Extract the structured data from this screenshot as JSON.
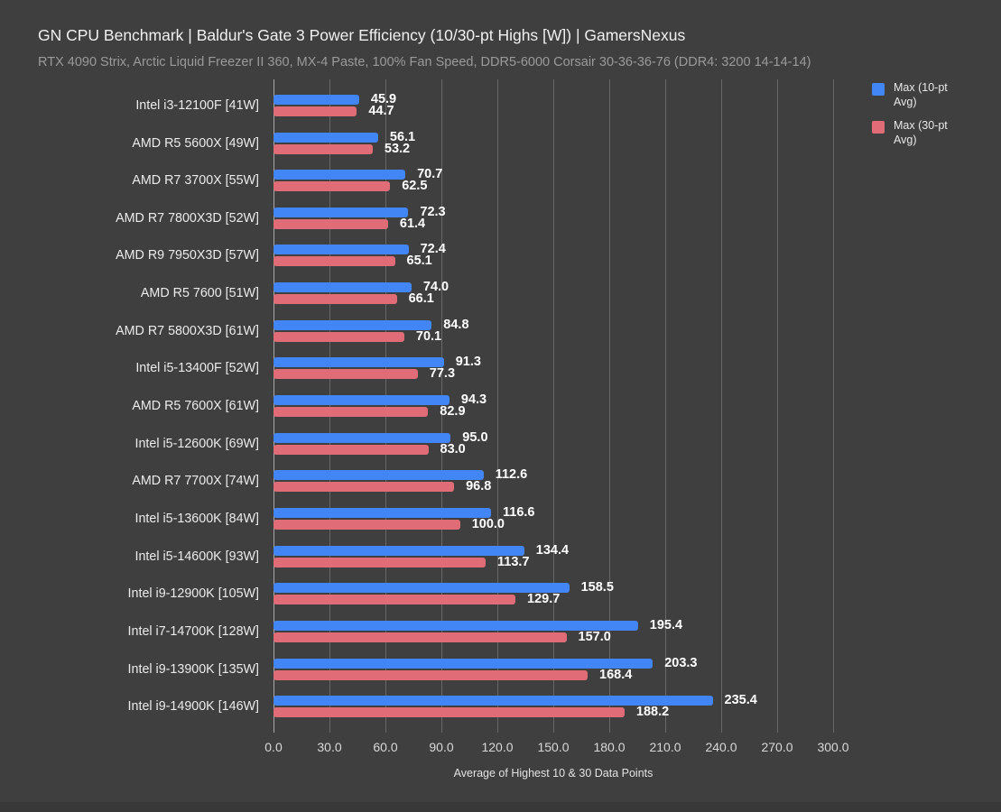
{
  "header": {
    "title": "GN CPU Benchmark | Baldur's Gate 3 Power Efficiency (10/30-pt Highs [W]) | GamersNexus",
    "subtitle": "RTX 4090 Strix, Arctic Liquid Freezer II 360, MX-4 Paste, 100% Fan Speed, DDR5-6000 Corsair 30-36-36-76 (DDR4: 3200 14-14-14)"
  },
  "chart_data": {
    "type": "bar",
    "orientation": "horizontal",
    "title": "GN CPU Benchmark | Baldur's Gate 3 Power Efficiency (10/30-pt Highs [W]) | GamersNexus",
    "subtitle": "RTX 4090 Strix, Arctic Liquid Freezer II 360, MX-4 Paste, 100% Fan Speed, DDR5-6000 Corsair 30-36-36-76 (DDR4: 3200 14-14-14)",
    "xlabel": "Average of Highest 10 & 30 Data Points",
    "xlim": [
      0,
      300
    ],
    "xtick_step": 30,
    "xtick_labels": [
      "0.0",
      "30.0",
      "60.0",
      "90.0",
      "120.0",
      "150.0",
      "180.0",
      "210.0",
      "240.0",
      "270.0",
      "300.0"
    ],
    "grid": true,
    "legend_position": "top-right",
    "value_label_decimals": 1,
    "categories": [
      "Intel i3-12100F [41W]",
      "AMD R5 5600X [49W]",
      "AMD R7 3700X [55W]",
      "AMD R7 7800X3D [52W]",
      "AMD R9 7950X3D [57W]",
      "AMD R5 7600 [51W]",
      "AMD R7 5800X3D [61W]",
      "Intel i5-13400F [52W]",
      "AMD R5 7600X [61W]",
      "Intel i5-12600K [69W]",
      "AMD R7 7700X [74W]",
      "Intel i5-13600K [84W]",
      "Intel i5-14600K [93W]",
      "Intel i9-12900K [105W]",
      "Intel i7-14700K [128W]",
      "Intel i9-13900K [135W]",
      "Intel i9-14900K [146W]"
    ],
    "series": [
      {
        "name": "Max (10-pt Avg)",
        "color": "#4285f4",
        "values": [
          45.9,
          56.1,
          70.7,
          72.3,
          72.4,
          74.0,
          84.8,
          91.3,
          94.3,
          95.0,
          112.6,
          116.6,
          134.4,
          158.5,
          195.4,
          203.3,
          235.4
        ]
      },
      {
        "name": "Max (30-pt Avg)",
        "color": "#df6c76",
        "values": [
          44.7,
          53.2,
          62.5,
          61.4,
          65.1,
          66.1,
          70.1,
          77.3,
          82.9,
          83.0,
          96.8,
          100.0,
          113.7,
          129.7,
          157.0,
          168.4,
          188.2
        ]
      }
    ]
  },
  "colors": {
    "background": "#3f3f3f",
    "gridline": "#676767",
    "zero_axis": "#a9a9a9",
    "title_text": "#f0f0f0",
    "subtitle_text": "#9a9a9a",
    "category_text": "#ebebeb",
    "value_label_text": "#ffffff",
    "tick_text": "#d8d8d8",
    "footer_strip": "#383838"
  }
}
